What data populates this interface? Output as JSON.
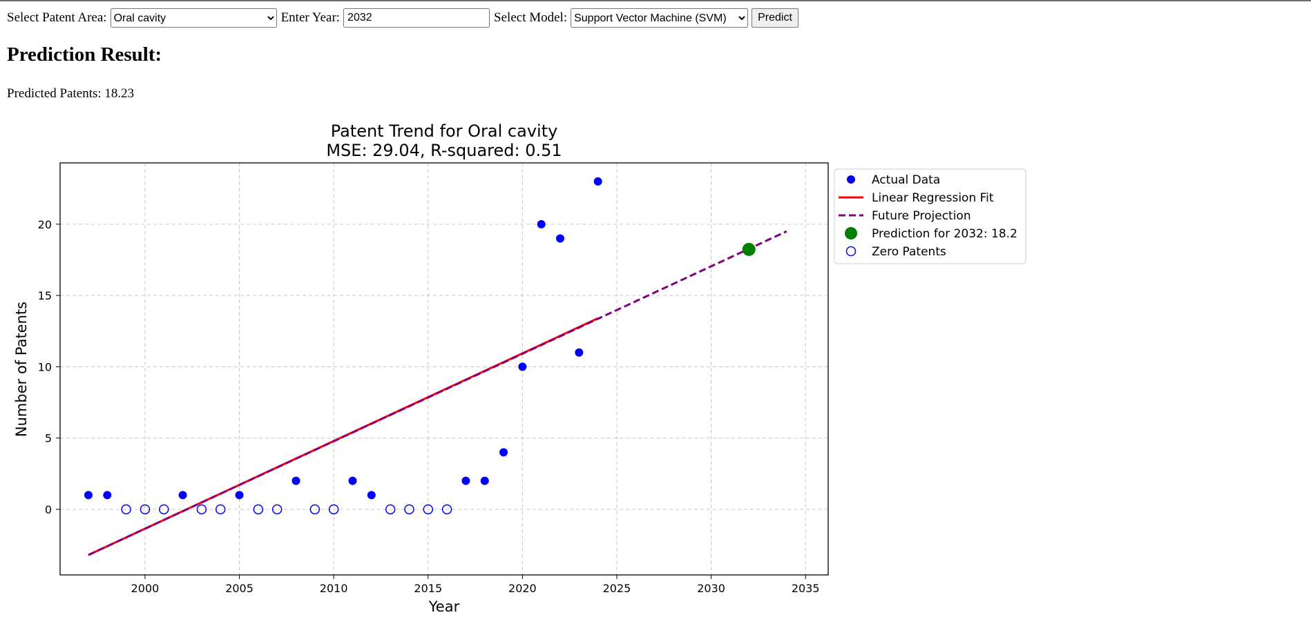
{
  "controls": {
    "area_label": "Select Patent Area:",
    "area_selected": "Oral cavity",
    "year_label": "Enter Year:",
    "year_value": "2032",
    "model_label": "Select Model:",
    "model_selected": "Support Vector Machine (SVM)",
    "predict_label": "Predict"
  },
  "result": {
    "heading": "Prediction Result:",
    "text": "Predicted Patents: 18.23"
  },
  "chart_data": {
    "type": "scatter",
    "title": "Patent Trend for Oral cavity",
    "subtitle": "MSE: 29.04, R-squared: 0.51",
    "xlabel": "Year",
    "ylabel": "Number of Patents",
    "xlim": [
      1995.5,
      2036.2
    ],
    "ylim": [
      -4.6,
      24.3
    ],
    "xticks": [
      2000,
      2005,
      2010,
      2015,
      2020,
      2025,
      2030,
      2035
    ],
    "yticks": [
      0,
      5,
      10,
      15,
      20
    ],
    "grid": true,
    "legend_position": "outside-top-right",
    "actual_data": {
      "label": "Actual Data",
      "color": "#0000ff",
      "points": [
        [
          1997,
          1
        ],
        [
          1998,
          1
        ],
        [
          2002,
          1
        ],
        [
          2005,
          1
        ],
        [
          2008,
          2
        ],
        [
          2011,
          2
        ],
        [
          2012,
          1
        ],
        [
          2017,
          2
        ],
        [
          2018,
          2
        ],
        [
          2019,
          4
        ],
        [
          2020,
          10
        ],
        [
          2021,
          20
        ],
        [
          2022,
          19
        ],
        [
          2023,
          11
        ],
        [
          2024,
          23
        ]
      ]
    },
    "zero_patents": {
      "label": "Zero Patents",
      "color": "#0000ff",
      "points": [
        [
          1999,
          0
        ],
        [
          2000,
          0
        ],
        [
          2001,
          0
        ],
        [
          2003,
          0
        ],
        [
          2004,
          0
        ],
        [
          2006,
          0
        ],
        [
          2007,
          0
        ],
        [
          2009,
          0
        ],
        [
          2010,
          0
        ],
        [
          2013,
          0
        ],
        [
          2014,
          0
        ],
        [
          2015,
          0
        ],
        [
          2016,
          0
        ]
      ]
    },
    "regression_fit": {
      "label": "Linear Regression Fit",
      "color": "#ff0000",
      "points": [
        [
          1997,
          -3.2
        ],
        [
          2024,
          13.4
        ]
      ]
    },
    "future_projection": {
      "label": "Future Projection",
      "color": "#800080",
      "points": [
        [
          1997,
          -3.2
        ],
        [
          2034,
          19.5
        ]
      ]
    },
    "prediction": {
      "label": "Prediction for 2032: 18.2",
      "color": "#008000",
      "x": 2032,
      "y": 18.23
    }
  }
}
